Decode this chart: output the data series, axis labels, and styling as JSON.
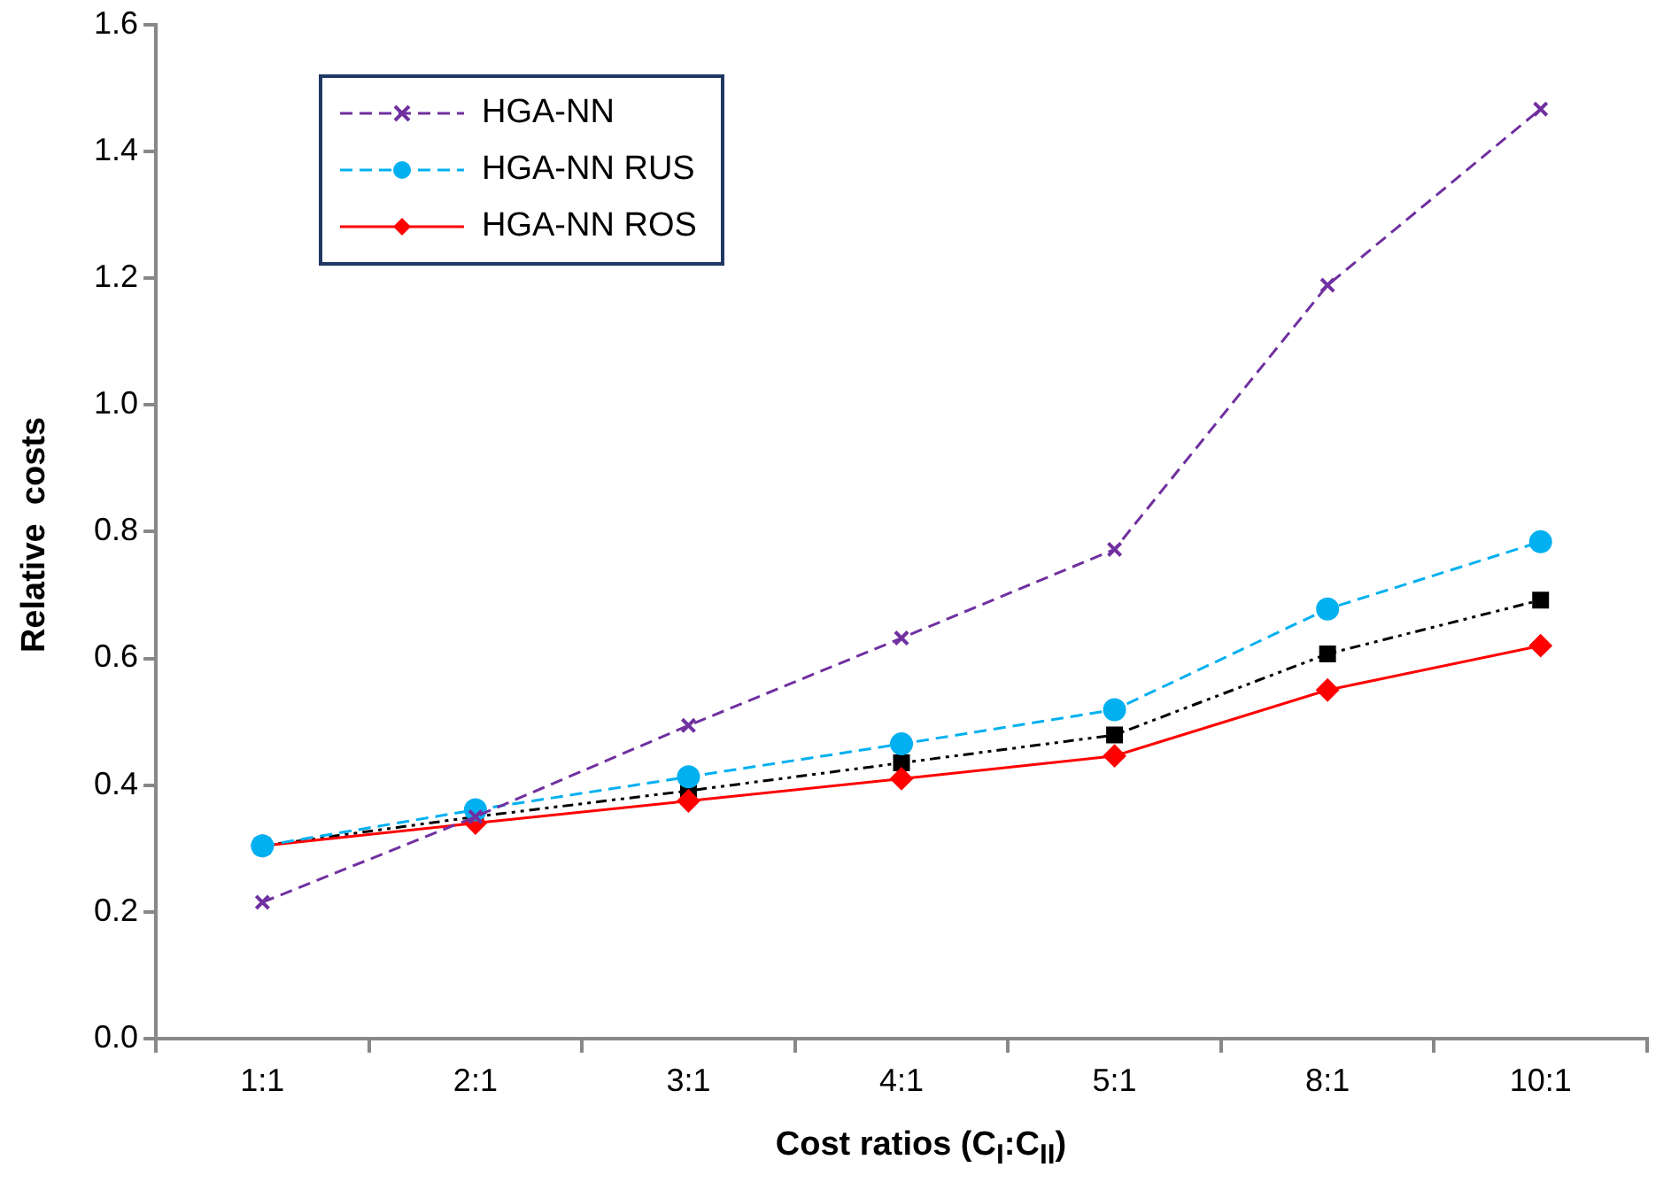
{
  "chart_data": {
    "type": "line",
    "xlabel": "Cost ratios (C$_{I}$:C$_{II}$)",
    "ylabel": "Relative  costs",
    "categories": [
      "1:1",
      "2:1",
      "3:1",
      "4:1",
      "5:1",
      "8:1",
      "10:1"
    ],
    "series": [
      {
        "name": "HGA-NN",
        "color": "#7030a0",
        "marker": "cross",
        "line_style": "dashed",
        "values": [
          0.215,
          0.35,
          0.494,
          0.632,
          0.772,
          1.189,
          1.467
        ]
      },
      {
        "name": "HGA-NN RUS",
        "color": "#00b0f0",
        "marker": "circle",
        "line_style": "dashed",
        "values": [
          0.304,
          0.361,
          0.413,
          0.465,
          0.519,
          0.678,
          0.784
        ]
      },
      {
        "name": "HGA-NN ROS",
        "color": "#ff0000",
        "marker": "diamond",
        "line_style": "solid",
        "values": [
          0.304,
          0.34,
          0.375,
          0.41,
          0.446,
          0.55,
          0.62
        ]
      },
      {
        "color": "#000000",
        "marker": "square",
        "line_style": "dotted",
        "values": [
          0.304,
          0.35,
          0.391,
          0.435,
          0.479,
          0.607,
          0.692
        ]
      }
    ],
    "ylim": [
      0,
      1.6
    ],
    "yticks": [
      {
        "value": 0,
        "label": "0.0"
      },
      {
        "value": 0.2,
        "label": "0.2"
      },
      {
        "value": 0.4,
        "label": "0.4"
      },
      {
        "value": 0.6,
        "label": "0.6"
      },
      {
        "value": 0.8,
        "label": "0.8"
      },
      {
        "value": 1.0,
        "label": "1.0"
      },
      {
        "value": 1.2,
        "label": "1.2"
      },
      {
        "value": 1.4,
        "label": "1.4"
      },
      {
        "value": 1.6,
        "label": "1.6"
      }
    ],
    "grid": false,
    "legend": "top left"
  }
}
